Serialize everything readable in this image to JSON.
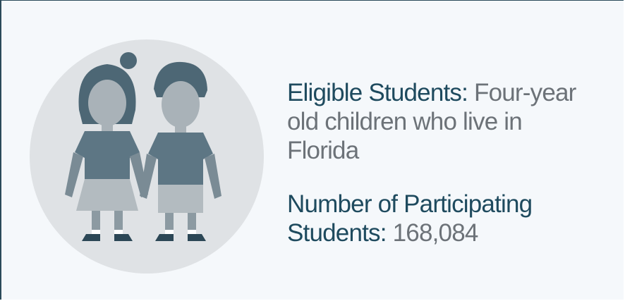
{
  "eligible": {
    "label": "Eligible Students:",
    "text": "Four-year old children who live in Florida"
  },
  "participating": {
    "label": "Number of Participating Students:",
    "value": "168,084"
  }
}
